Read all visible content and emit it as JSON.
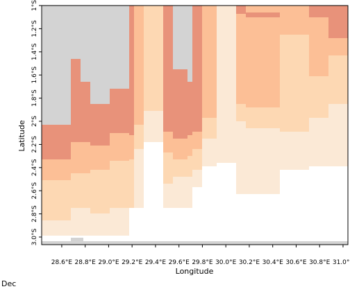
{
  "chart_data": {
    "type": "heatmap",
    "xlabel": "Longitude",
    "ylabel": "Latitude",
    "footer": "Dec",
    "colors": {
      "land": "#d3d3d3",
      "class_1": "#fbe9d6",
      "class_2": "#fdd8b3",
      "class_3": "#fcbf96",
      "class_4": "#e8927a"
    },
    "x_ticks": [
      "28.6°E",
      "28.8°E",
      "29.0°E",
      "29.2°E",
      "29.4°E",
      "29.6°E",
      "29.8°E",
      "30.0°E",
      "30.2°E",
      "30.4°E",
      "30.6°E",
      "30.8°E",
      "31.0°E"
    ],
    "y_ticks": [
      "1°S",
      "1.2°S",
      "1.4°S",
      "1.6°S",
      "1.8°S",
      "2°S",
      "2.2°S",
      "2.4°S",
      "2.6°S",
      "2.8°S",
      "3.0°S"
    ]
  }
}
